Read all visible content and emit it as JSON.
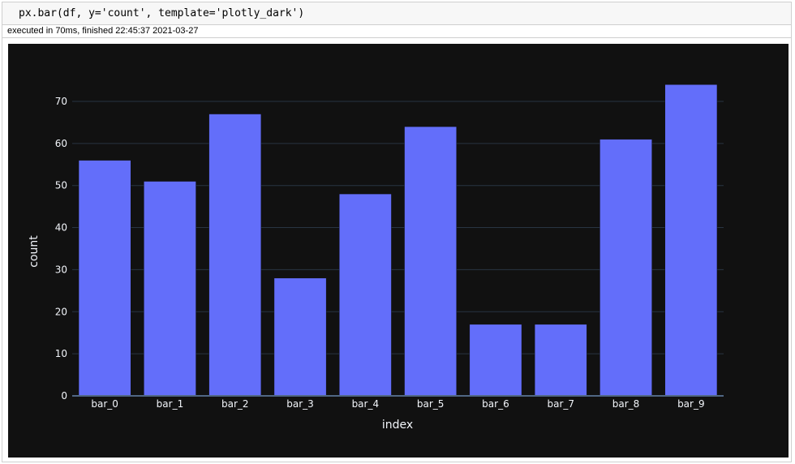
{
  "cell": {
    "code": "px.bar(df, y='count', template='plotly_dark')",
    "status": "executed in 70ms, finished 22:45:37 2021-03-27"
  },
  "colors": {
    "paper": "#111111",
    "plot": "#111111",
    "bar": "#636efa",
    "grid": "#283442",
    "zeroline": "#506784",
    "tick_text": "#f2f5fa"
  },
  "chart_data": {
    "type": "bar",
    "template": "plotly_dark",
    "categories": [
      "bar_0",
      "bar_1",
      "bar_2",
      "bar_3",
      "bar_4",
      "bar_5",
      "bar_6",
      "bar_7",
      "bar_8",
      "bar_9"
    ],
    "values": [
      56,
      51,
      67,
      28,
      48,
      64,
      17,
      17,
      61,
      74
    ],
    "xlabel": "index",
    "ylabel": "count",
    "ylim": [
      0,
      77.9
    ],
    "yticks": [
      0,
      10,
      20,
      30,
      40,
      50,
      60,
      70
    ],
    "grid": true,
    "legend": false
  }
}
